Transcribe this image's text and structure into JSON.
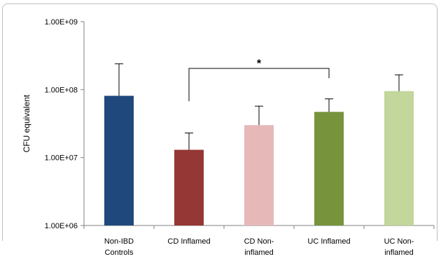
{
  "chart_data": {
    "type": "bar",
    "title": "",
    "xlabel": "",
    "ylabel": "CFU equivalent",
    "yscale": "log",
    "ylim": [
      1000000,
      1000000000
    ],
    "yticks": [
      {
        "value": 1000000000,
        "label": "1.00E+09"
      },
      {
        "value": 100000000,
        "label": "1.00E+08"
      },
      {
        "value": 10000000,
        "label": "1.00E+07"
      },
      {
        "value": 1000000,
        "label": "1.00E+06"
      }
    ],
    "categories": [
      [
        "Non-IBD",
        "Controls"
      ],
      [
        "CD Inflamed"
      ],
      [
        "CD Non-",
        "inflamed"
      ],
      [
        "UC Inflamed"
      ],
      [
        "UC Non-",
        "inflamed"
      ]
    ],
    "values": [
      81000000,
      13000000,
      30000000,
      47000000,
      95000000
    ],
    "error_upper": [
      240000000,
      23000000,
      57000000,
      73000000,
      165000000
    ],
    "colors": [
      "#1f497d",
      "#953735",
      "#e6b9b8",
      "#77933c",
      "#c3d69b"
    ],
    "significance": {
      "from": 1,
      "to": 3,
      "label": "*"
    },
    "grid": false
  }
}
